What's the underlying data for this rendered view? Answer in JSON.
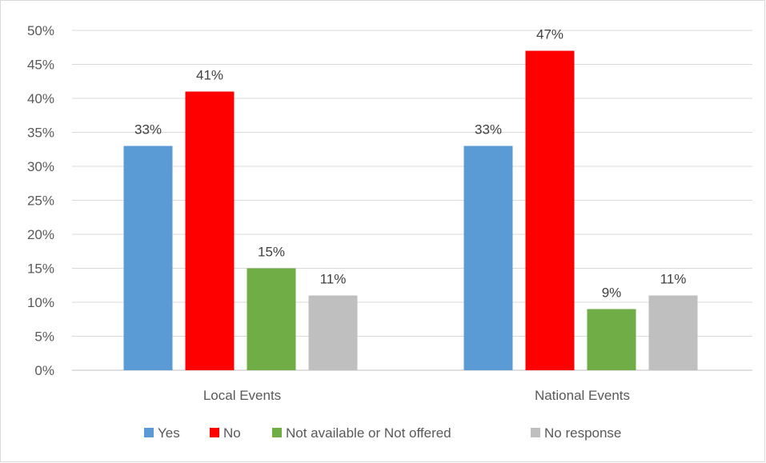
{
  "chart_data": {
    "type": "bar",
    "categories": [
      "Local Events",
      "National Events"
    ],
    "series": [
      {
        "name": "Yes",
        "values": [
          33,
          33
        ],
        "color": "#5B9BD5"
      },
      {
        "name": "No",
        "values": [
          41,
          47
        ],
        "color": "#FF0000"
      },
      {
        "name": "Not available or Not offered",
        "values": [
          15,
          9
        ],
        "color": "#70AD47"
      },
      {
        "name": "No response",
        "values": [
          11,
          11
        ],
        "color": "#BFBFBF"
      }
    ],
    "data_labels": [
      [
        "33%",
        "33%"
      ],
      [
        "41%",
        "47%"
      ],
      [
        "15%",
        "9%"
      ],
      [
        "11%",
        "11%"
      ]
    ],
    "ylim": [
      0,
      50
    ],
    "y_ticks": [
      0,
      5,
      10,
      15,
      20,
      25,
      30,
      35,
      40,
      45,
      50
    ],
    "y_tick_labels": [
      "0%",
      "5%",
      "10%",
      "15%",
      "20%",
      "25%",
      "30%",
      "35%",
      "40%",
      "45%",
      "50%"
    ],
    "grid": true,
    "legend_position": "bottom",
    "title": "",
    "xlabel": "",
    "ylabel": ""
  }
}
